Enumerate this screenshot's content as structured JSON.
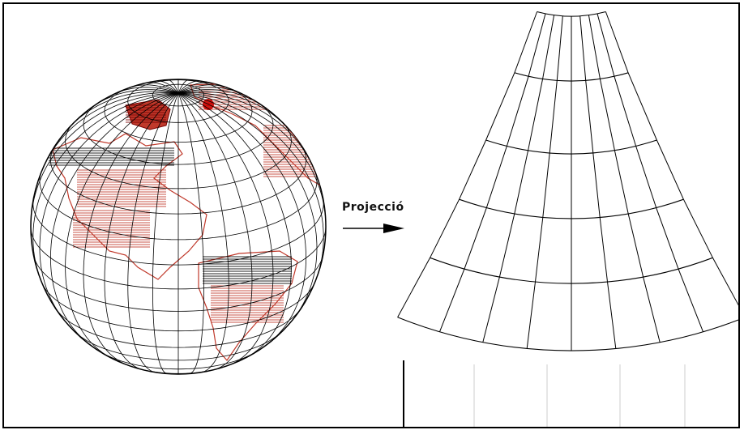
{
  "diagram": {
    "label": "Projecció",
    "colors": {
      "ink": "#000000",
      "land_fill": "#c0392b",
      "land_dark": "#7a0000",
      "background": "#ffffff"
    },
    "parts": [
      "globe",
      "arrow",
      "conic-projection-grid"
    ]
  }
}
